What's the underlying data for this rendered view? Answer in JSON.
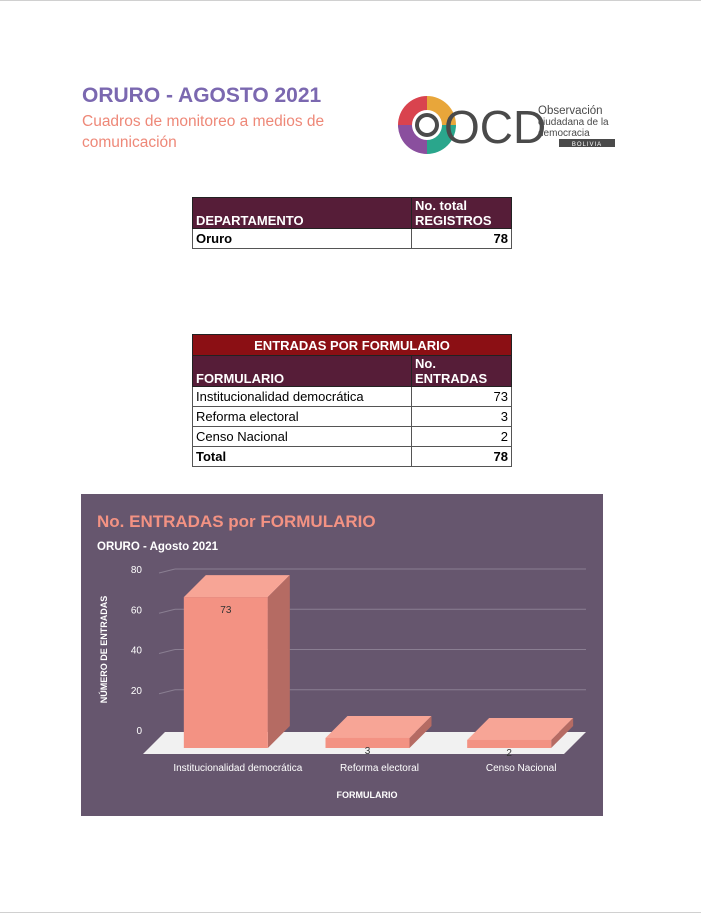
{
  "header": {
    "title": "ORURO - AGOSTO 2021",
    "subtitle": "Cuadros de monitoreo a medios de comunicación"
  },
  "logo": {
    "letters": "OCD",
    "line1": "Observación",
    "line2": "ciudadana de la",
    "line3": "democracia",
    "country": "BOLIVIA"
  },
  "summary_table": {
    "col_dept": "DEPARTAMENTO",
    "col_total_1": "No. total",
    "col_total_2": "REGISTROS",
    "row": {
      "dept": "Oruro",
      "total": "78"
    }
  },
  "entries_table": {
    "banner": "ENTRADAS POR FORMULARIO",
    "col_form": "FORMULARIO",
    "col_num_1": "No.",
    "col_num_2": "ENTRADAS",
    "rows": [
      {
        "form": "Institucionalidad democrática",
        "value": "73"
      },
      {
        "form": "Reforma electoral",
        "value": "3"
      },
      {
        "form": "Censo Nacional",
        "value": "2"
      }
    ],
    "total_label": "Total",
    "total_value": "78"
  },
  "chart_data": {
    "type": "bar",
    "title": "No. ENTRADAS por FORMULARIO",
    "subtitle": "ORURO - Agosto 2021",
    "categories": [
      "Institucionalidad democrática",
      "Reforma electoral",
      "Censo Nacional"
    ],
    "values": [
      73,
      3,
      2
    ],
    "xlabel": "FORMULARIO",
    "ylabel": "NÚMERO DE ENTRADAS",
    "ylim": [
      0,
      80
    ],
    "yticks": [
      0,
      20,
      40,
      60,
      80
    ],
    "grid": true,
    "three_d": true,
    "colors": {
      "background": "#66566e",
      "bar": "#f39283",
      "title": "#f39283",
      "text": "#ffffff"
    }
  }
}
